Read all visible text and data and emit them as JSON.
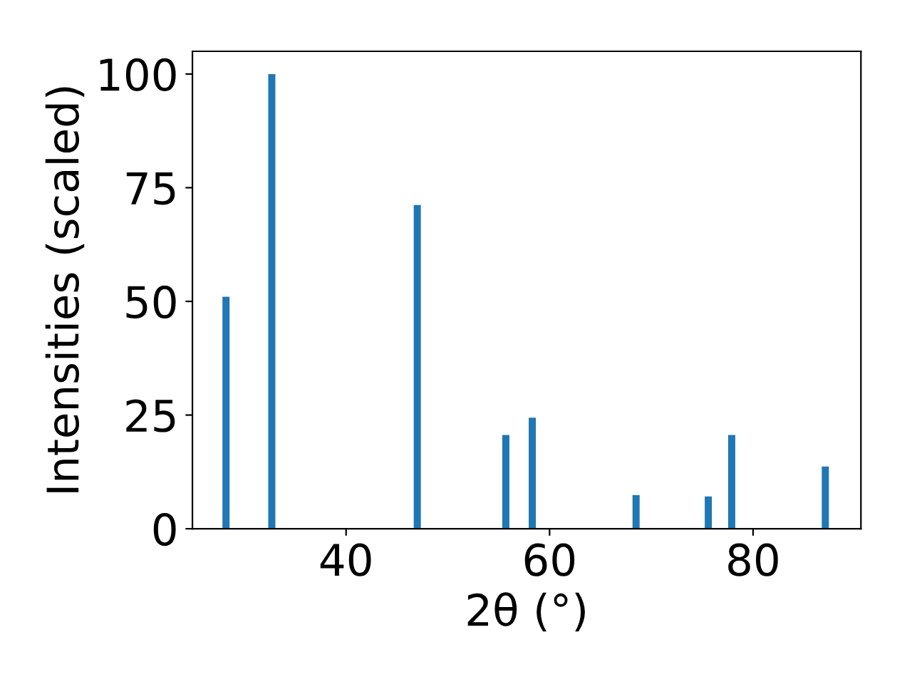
{
  "chart_data": {
    "type": "bar",
    "xlabel": "2θ (°)",
    "ylabel": "Intensities (scaled)",
    "x": [
      28.2,
      32.7,
      47.0,
      55.7,
      58.3,
      68.5,
      75.6,
      77.9,
      87.1
    ],
    "values": [
      51.0,
      100,
      71.2,
      20.6,
      24.4,
      7.4,
      7.1,
      20.6,
      13.7
    ],
    "color": "#1f77b4",
    "xlim": [
      24.9,
      90.6
    ],
    "xticks": [
      40,
      60,
      80
    ],
    "ylim": [
      0,
      105
    ],
    "yticks": [
      0,
      25,
      50,
      75,
      100
    ],
    "grid": false
  }
}
